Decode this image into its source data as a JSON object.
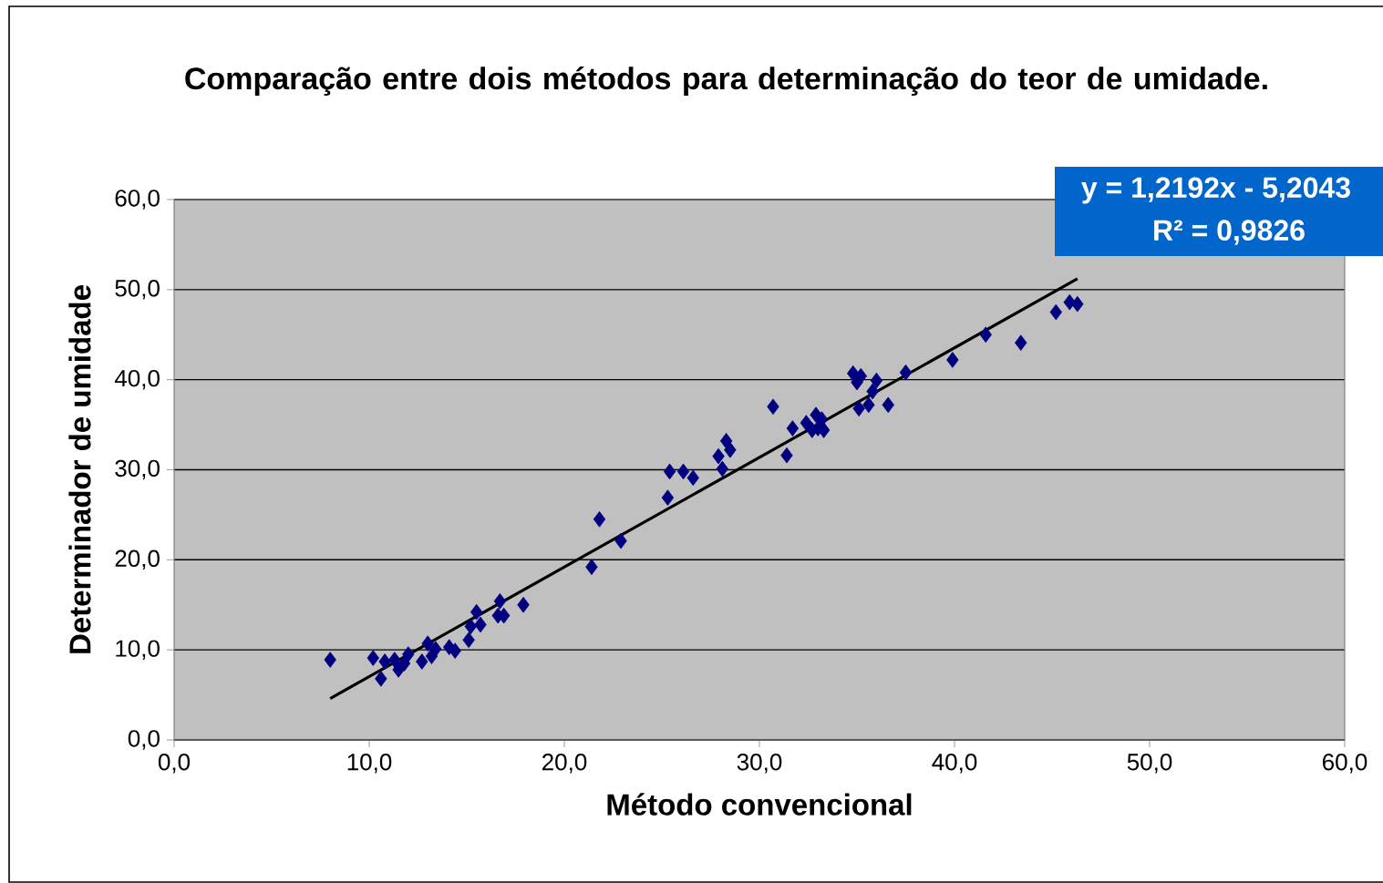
{
  "chart_data": {
    "type": "scatter",
    "title": "Comparação entre dois métodos para determinação do teor de umidade.",
    "xlabel": "Método convencional",
    "ylabel": "Determinador de umidade",
    "annotations": [
      "y = 1,2192x  - 5,2043",
      "R² = 0,9826"
    ],
    "xlim": [
      0,
      60
    ],
    "ylim": [
      0,
      60
    ],
    "xticks": [
      {
        "value": 0,
        "label": "0,0"
      },
      {
        "value": 10,
        "label": "10,0"
      },
      {
        "value": 20,
        "label": "20,0"
      },
      {
        "value": 30,
        "label": "30,0"
      },
      {
        "value": 40,
        "label": "40,0"
      },
      {
        "value": 50,
        "label": "50,0"
      },
      {
        "value": 60,
        "label": "60,0"
      }
    ],
    "yticks": [
      {
        "value": 0,
        "label": "0,0"
      },
      {
        "value": 10,
        "label": "10,0"
      },
      {
        "value": 20,
        "label": "20,0"
      },
      {
        "value": 30,
        "label": "30,0"
      },
      {
        "value": 40,
        "label": "40,0"
      },
      {
        "value": 50,
        "label": "50,0"
      },
      {
        "value": 60,
        "label": "60,0"
      }
    ],
    "grid": "y",
    "series": [
      {
        "marker": "diamond",
        "color": "#000080",
        "x": [
          8.0,
          10.2,
          10.6,
          10.8,
          11.3,
          11.5,
          12.0,
          11.8,
          12.7,
          13.0,
          13.2,
          13.4,
          14.1,
          14.4,
          15.1,
          15.2,
          15.5,
          15.7,
          16.6,
          16.7,
          16.9,
          17.9,
          21.4,
          21.8,
          22.9,
          25.3,
          25.4,
          26.1,
          26.6,
          27.9,
          28.1,
          28.3,
          28.5,
          30.7,
          31.4,
          31.7,
          32.4,
          32.7,
          32.9,
          33.0,
          33.3,
          33.2,
          34.8,
          35.0,
          35.2,
          35.1,
          35.6,
          35.8,
          36.0,
          36.6,
          37.5,
          39.9,
          41.6,
          43.4,
          45.2,
          45.9,
          46.3
        ],
        "values": [
          8.9,
          9.1,
          6.8,
          8.7,
          8.9,
          7.8,
          9.5,
          8.5,
          8.7,
          10.7,
          9.3,
          10.1,
          10.3,
          9.9,
          11.1,
          12.6,
          14.2,
          12.8,
          13.8,
          15.4,
          13.8,
          15.0,
          19.2,
          24.5,
          22.1,
          26.9,
          29.8,
          29.8,
          29.1,
          31.5,
          30.1,
          33.2,
          32.2,
          37.0,
          31.6,
          34.6,
          35.2,
          34.4,
          36.1,
          34.6,
          34.4,
          35.6,
          40.7,
          39.7,
          40.4,
          36.8,
          37.2,
          38.7,
          39.9,
          37.2,
          40.8,
          42.2,
          45.0,
          44.1,
          47.5,
          48.6,
          48.4
        ]
      },
      {
        "type": "line",
        "marker": "none",
        "line_style": "solid",
        "color": "#000000",
        "x": [
          8.0,
          46.3
        ],
        "values": [
          4.6,
          51.2
        ]
      }
    ]
  }
}
